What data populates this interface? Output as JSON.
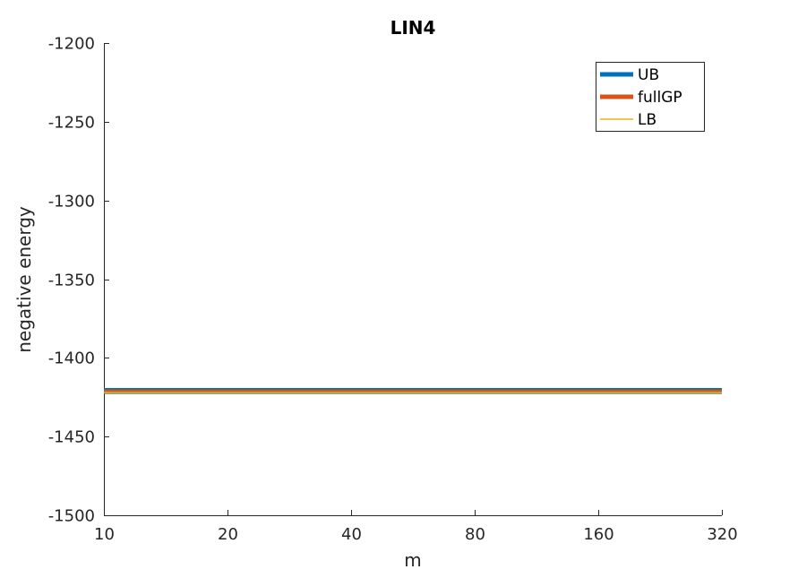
{
  "chart_data": {
    "type": "line",
    "title": "LIN4",
    "xlabel": "m",
    "ylabel": "negative energy",
    "x": [
      10,
      20,
      40,
      80,
      160,
      320
    ],
    "x_scale": "log2",
    "xlim": [
      10,
      320
    ],
    "ylim": [
      -1500,
      -1200
    ],
    "xticks": [
      "10",
      "20",
      "40",
      "80",
      "160",
      "320"
    ],
    "yticks": [
      "-1200",
      "-1250",
      "-1300",
      "-1350",
      "-1400",
      "-1450",
      "-1500"
    ],
    "ytick_values": [
      -1200,
      -1250,
      -1300,
      -1350,
      -1400,
      -1450,
      -1500
    ],
    "grid": false,
    "legend_position": "top-right",
    "series": [
      {
        "name": "UB",
        "color": "#0072BD",
        "values": [
          -1420,
          -1420,
          -1420,
          -1420,
          -1420,
          -1420
        ]
      },
      {
        "name": "fullGP",
        "color": "#D95319",
        "values": [
          -1421,
          -1421,
          -1421,
          -1421,
          -1421,
          -1421
        ]
      },
      {
        "name": "LB",
        "color": "#EDB120",
        "values": [
          -1422,
          -1422,
          -1422,
          -1422,
          -1422,
          -1422
        ]
      }
    ],
    "lower_line": {
      "color": "#2E7D6E",
      "values": [
        -1422.5,
        -1422.5,
        -1422.5,
        -1422.5,
        -1422.5,
        -1422.5
      ]
    }
  }
}
